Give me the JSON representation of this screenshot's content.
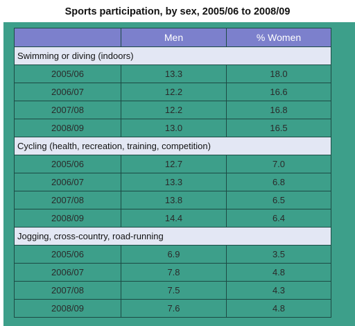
{
  "title": "Sports participation, by sex, 2005/06 to 2008/09",
  "colors": {
    "background": "#3d9f8a",
    "header": "#7c80cc",
    "group_row": "#e3e7f4"
  },
  "chart_data": {
    "type": "table",
    "title": "Sports participation, by sex, 2005/06 to 2008/09",
    "columns": [
      "",
      "Men",
      "% Women"
    ],
    "groups": [
      {
        "name": "Swimming or diving (indoors)",
        "rows": [
          {
            "year": "2005/06",
            "men": "13.3",
            "women": "18.0"
          },
          {
            "year": "2006/07",
            "men": "12.2",
            "women": "16.6"
          },
          {
            "year": "2007/08",
            "men": "12.2",
            "women": "16.8"
          },
          {
            "year": "2008/09",
            "men": "13.0",
            "women": "16.5"
          }
        ]
      },
      {
        "name": "Cycling (health, recreation, training, competition)",
        "rows": [
          {
            "year": "2005/06",
            "men": "12.7",
            "women": "7.0"
          },
          {
            "year": "2006/07",
            "men": "13.3",
            "women": "6.8"
          },
          {
            "year": "2007/08",
            "men": "13.8",
            "women": "6.5"
          },
          {
            "year": "2008/09",
            "men": "14.4",
            "women": "6.4"
          }
        ]
      },
      {
        "name": "Jogging, cross-country, road-running",
        "rows": [
          {
            "year": "2005/06",
            "men": "6.9",
            "women": "3.5"
          },
          {
            "year": "2006/07",
            "men": "7.8",
            "women": "4.8"
          },
          {
            "year": "2007/08",
            "men": "7.5",
            "women": "4.3"
          },
          {
            "year": "2008/09",
            "men": "7.6",
            "women": "4.8"
          }
        ]
      }
    ]
  }
}
